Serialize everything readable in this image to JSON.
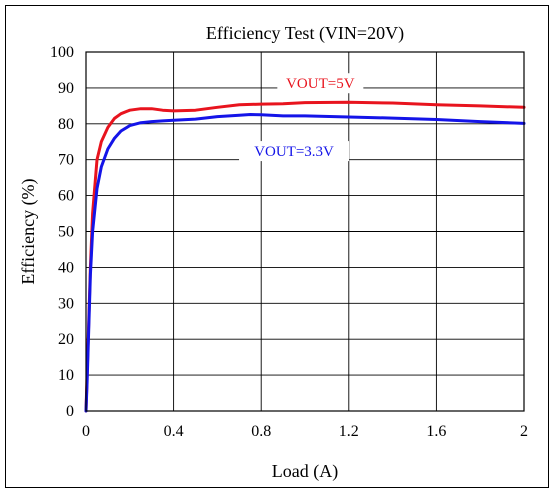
{
  "chart_data": {
    "type": "line",
    "title": "Efficiency Test (VIN=20V)",
    "xlabel": "Load (A)",
    "ylabel": "Efficiency  (%)",
    "xlim": [
      0,
      2
    ],
    "ylim": [
      0,
      100
    ],
    "x_ticks": [
      0,
      0.4,
      0.8,
      1.2,
      1.6,
      2
    ],
    "x_tick_labels": [
      "0",
      "0.4",
      "0.8",
      "1.2",
      "1.6",
      "2"
    ],
    "y_ticks": [
      0,
      10,
      20,
      30,
      40,
      50,
      60,
      70,
      80,
      90,
      100
    ],
    "y_tick_labels": [
      "0",
      "10",
      "20",
      "30",
      "40",
      "50",
      "60",
      "70",
      "80",
      "90",
      "100"
    ],
    "grid": true,
    "series": [
      {
        "name": "VOUT=5V",
        "color": "#e8141e",
        "x": [
          0,
          0.005,
          0.01,
          0.02,
          0.03,
          0.05,
          0.07,
          0.1,
          0.13,
          0.16,
          0.2,
          0.25,
          0.3,
          0.35,
          0.4,
          0.5,
          0.6,
          0.7,
          0.8,
          0.9,
          1.0,
          1.2,
          1.4,
          1.6,
          1.8,
          2.0
        ],
        "y": [
          0,
          10,
          20,
          40,
          55,
          70,
          75,
          79,
          81.5,
          82.8,
          83.8,
          84.2,
          84.2,
          83.8,
          83.6,
          83.8,
          84.6,
          85.3,
          85.5,
          85.6,
          85.9,
          86.0,
          85.8,
          85.3,
          85.0,
          84.6
        ]
      },
      {
        "name": "VOUT=3.3V",
        "color": "#1414e8",
        "x": [
          0,
          0.005,
          0.01,
          0.02,
          0.03,
          0.05,
          0.07,
          0.1,
          0.13,
          0.16,
          0.2,
          0.25,
          0.3,
          0.35,
          0.4,
          0.5,
          0.6,
          0.7,
          0.75,
          0.8,
          0.9,
          1.0,
          1.2,
          1.4,
          1.6,
          1.8,
          2.0
        ],
        "y": [
          0,
          8,
          18,
          38,
          50,
          62,
          68,
          73,
          76,
          78,
          79.5,
          80.3,
          80.6,
          80.8,
          81.0,
          81.3,
          82.0,
          82.4,
          82.6,
          82.5,
          82.2,
          82.2,
          81.9,
          81.6,
          81.2,
          80.6,
          80.1
        ]
      }
    ]
  }
}
